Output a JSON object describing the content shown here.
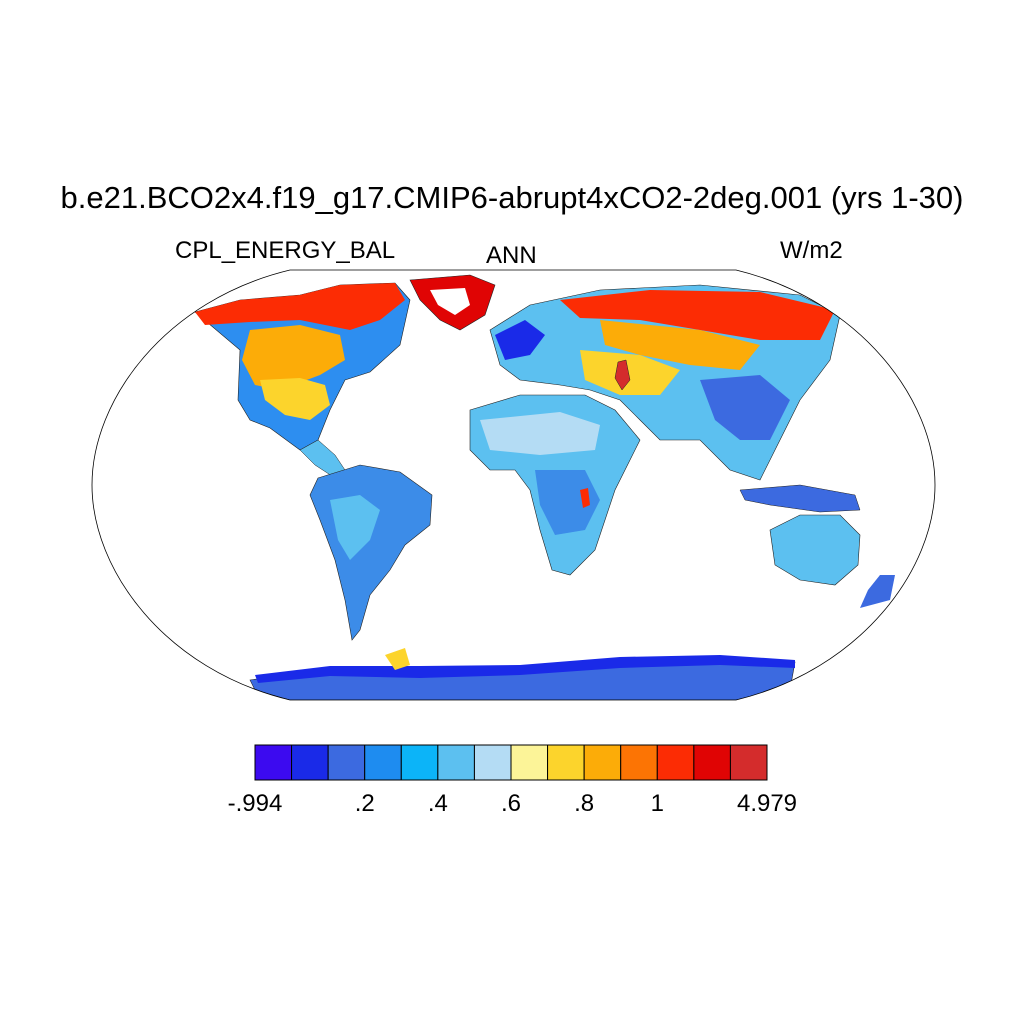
{
  "title": "b.e21.BCO2x4.f19_g17.CMIP6-abrupt4xCO2-2deg.001 (yrs 1-30)",
  "left_label": "CPL_ENERGY_BAL",
  "center_label": "ANN",
  "right_label": "W/m2",
  "colorbar": {
    "colors": [
      "#3c0af0",
      "#1a2ae8",
      "#3c6ae0",
      "#1e8cf0",
      "#0cb4f8",
      "#5cc0f0",
      "#b4dcf4",
      "#fcf498",
      "#fcd42c",
      "#fcac08",
      "#fc7404",
      "#fc2c04",
      "#e00404",
      "#d42c2c"
    ],
    "labels": [
      {
        "boundary": 0,
        "text": "-.994"
      },
      {
        "boundary": 3,
        "text": ".2"
      },
      {
        "boundary": 5,
        "text": ".4"
      },
      {
        "boundary": 7,
        "text": ".6"
      },
      {
        "boundary": 9,
        "text": ".8"
      },
      {
        "boundary": 11,
        "text": "1"
      },
      {
        "boundary": 14,
        "text": "4.979"
      }
    ]
  }
}
